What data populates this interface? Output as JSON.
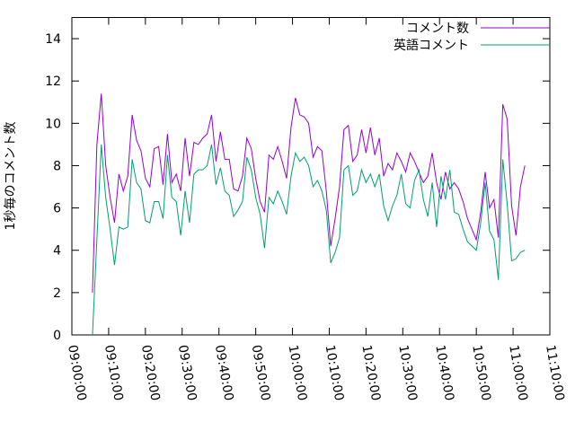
{
  "chart_data": {
    "type": "line",
    "ylabel": "1秒毎のコメント数",
    "x": [
      "09:05:36",
      "09:06:48",
      "09:08:00",
      "09:09:12",
      "09:10:24",
      "09:11:36",
      "09:12:48",
      "09:14:00",
      "09:15:12",
      "09:16:24",
      "09:17:36",
      "09:18:48",
      "09:20:00",
      "09:21:12",
      "09:22:24",
      "09:23:36",
      "09:24:48",
      "09:26:00",
      "09:27:12",
      "09:28:24",
      "09:29:36",
      "09:30:48",
      "09:32:00",
      "09:33:12",
      "09:34:24",
      "09:35:36",
      "09:36:48",
      "09:38:00",
      "09:39:12",
      "09:40:24",
      "09:41:36",
      "09:42:48",
      "09:44:00",
      "09:45:12",
      "09:46:24",
      "09:47:36",
      "09:48:48",
      "09:50:00",
      "09:51:12",
      "09:52:24",
      "09:53:36",
      "09:54:48",
      "09:56:00",
      "09:57:12",
      "09:58:24",
      "09:59:36",
      "10:00:48",
      "10:02:00",
      "10:03:12",
      "10:04:24",
      "10:05:36",
      "10:06:48",
      "10:08:00",
      "10:09:12",
      "10:10:24",
      "10:11:36",
      "10:12:48",
      "10:14:00",
      "10:15:12",
      "10:16:24",
      "10:17:36",
      "10:18:48",
      "10:20:00",
      "10:21:12",
      "10:22:24",
      "10:23:36",
      "10:24:48",
      "10:26:00",
      "10:27:12",
      "10:28:24",
      "10:29:36",
      "10:30:48",
      "10:32:00",
      "10:33:12",
      "10:34:24",
      "10:35:36",
      "10:36:48",
      "10:38:00",
      "10:39:12",
      "10:40:24",
      "10:41:36",
      "10:42:48",
      "10:44:00",
      "10:45:12",
      "10:46:24",
      "10:47:36",
      "10:48:48",
      "10:50:00",
      "10:51:12",
      "10:52:24",
      "10:53:36",
      "10:54:48",
      "10:56:00",
      "10:57:12",
      "10:58:24",
      "10:59:36",
      "11:00:48",
      "11:02:00",
      "11:03:12"
    ],
    "series": [
      {
        "name": "コメント数",
        "color": "#9400d3",
        "values": [
          2,
          9,
          11.4,
          8,
          6.5,
          5.3,
          7.6,
          6.8,
          7.5,
          10.4,
          9.2,
          8.7,
          7.4,
          7,
          8.8,
          8.9,
          7.1,
          9.5,
          7.2,
          7.6,
          6.8,
          9.3,
          7.5,
          9.1,
          9,
          9.3,
          9.5,
          10.4,
          8.2,
          9.6,
          8.3,
          8.3,
          6.9,
          6.8,
          7.5,
          9.3,
          8.8,
          7.4,
          6.3,
          5.8,
          8.5,
          8.3,
          8.9,
          8.2,
          7.4,
          9.8,
          11.2,
          10.4,
          10.3,
          10,
          8.4,
          8.9,
          8.7,
          6.8,
          4.2,
          5.5,
          7,
          9.7,
          9.9,
          8.2,
          8.5,
          9.7,
          8.6,
          9.8,
          8.5,
          9.3,
          7.5,
          8.1,
          7.8,
          8.6,
          8.2,
          7.7,
          8.6,
          8.2,
          7.7,
          7.2,
          7.5,
          8.6,
          7.2,
          6.4,
          7.7,
          6.9,
          7.2,
          6.9,
          6.3,
          5.5,
          5,
          4.5,
          5.8,
          7.7,
          6,
          6.4,
          4.6,
          10.9,
          10.2,
          6.1,
          4.7,
          7,
          8
        ]
      },
      {
        "name": "英語コメント",
        "color": "#009e73",
        "values": [
          0,
          4.5,
          9,
          6.5,
          5,
          3.3,
          5.1,
          5,
          5.1,
          8.3,
          7.2,
          6.9,
          5.4,
          5.3,
          6.3,
          6.3,
          5.5,
          8.5,
          6.5,
          6.3,
          4.7,
          6.8,
          5.3,
          7.6,
          7.8,
          7.8,
          8,
          9,
          7.1,
          7.9,
          6.8,
          6.6,
          5.6,
          5.9,
          6.3,
          8.4,
          7.8,
          6.5,
          5.7,
          4.1,
          6.5,
          6.2,
          6.8,
          6.3,
          5.7,
          7.5,
          8.6,
          8.2,
          8.4,
          8,
          7,
          7.3,
          6.8,
          5.9,
          3.4,
          3.9,
          4.6,
          7.8,
          8,
          6.6,
          6.8,
          7.8,
          7.2,
          7.6,
          7,
          7.6,
          6.1,
          5.4,
          6.1,
          6.6,
          7.6,
          6.2,
          6,
          7.3,
          7.8,
          6.4,
          5.6,
          7.2,
          5.1,
          7.5,
          6.4,
          7.8,
          5.8,
          5.7,
          5,
          4.4,
          4.2,
          4,
          5.3,
          7.2,
          4.9,
          4.5,
          2.6,
          8.3,
          6.2,
          3.5,
          3.6,
          3.9,
          4
        ]
      }
    ],
    "xlim": [
      "09:00:00",
      "11:10:00"
    ],
    "xticks": [
      "09:00:00",
      "09:10:00",
      "09:20:00",
      "09:30:00",
      "09:40:00",
      "09:50:00",
      "10:00:00",
      "10:10:00",
      "10:20:00",
      "10:30:00",
      "10:40:00",
      "10:50:00",
      "11:00:00",
      "11:10:00"
    ],
    "ylim": [
      0,
      15
    ],
    "yticks": [
      0,
      2,
      4,
      6,
      8,
      10,
      12,
      14
    ],
    "legend": "upper right"
  }
}
